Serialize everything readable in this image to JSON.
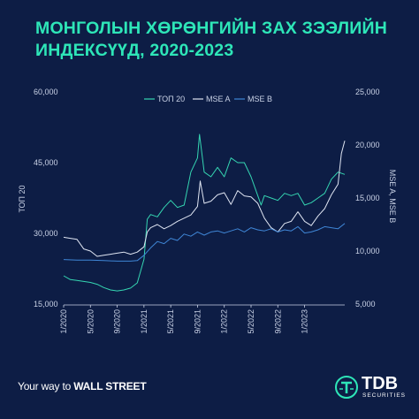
{
  "title": {
    "line1": "МОНГОЛЫН ХӨРӨНГИЙН ЗАХ ЗЭЭЛИЙН",
    "line2": "ИНДЕКСҮҮД, 2020-2023"
  },
  "footer": {
    "tagline_prefix": "Your way to ",
    "tagline_bold": "WALL STREET",
    "brand": "TDB",
    "brand_sub": "SECURITIES"
  },
  "colors": {
    "background": "#0d1d45",
    "accent": "#2ee6b8",
    "top20": "#35d6b2",
    "mse_a": "#dfe5f2",
    "mse_b": "#3f86d6"
  },
  "chart_data": {
    "type": "line",
    "title": "",
    "legend_position": "top",
    "y_left": {
      "label": "ТОП 20",
      "ticks": [
        "15,000",
        "30,000",
        "45,000",
        "60,000"
      ],
      "range": [
        15000,
        60000
      ]
    },
    "y_right": {
      "label": "MSE A, MSE B",
      "ticks": [
        "5,000",
        "10,000",
        "15,000",
        "20,000",
        "25,000"
      ],
      "range": [
        5000,
        25000
      ]
    },
    "x_ticks": [
      "1/2020",
      "5/2020",
      "9/2020",
      "1/2021",
      "5/2021",
      "9/2021",
      "1/2022",
      "5/2022",
      "9/2022",
      "1/2023"
    ],
    "series": [
      {
        "name": "ТОП 20",
        "axis": "left",
        "color": "#35d6b2",
        "x": [
          0,
          1,
          2,
          3,
          4,
          5,
          6,
          7,
          8,
          9,
          10,
          11,
          12,
          12.5,
          13,
          14,
          15,
          16,
          17,
          18,
          19,
          20,
          20.3,
          21,
          22,
          23,
          24,
          25,
          26,
          27,
          28,
          29,
          29.5,
          30,
          31,
          32,
          33,
          34,
          35,
          36,
          37,
          38,
          39,
          40,
          41,
          42
        ],
        "values": [
          21000,
          20200,
          20000,
          19800,
          19600,
          19200,
          18500,
          18000,
          17800,
          18000,
          18400,
          19500,
          24500,
          33000,
          34000,
          33500,
          35500,
          37000,
          35500,
          36000,
          43000,
          46000,
          51000,
          43000,
          42000,
          44000,
          42000,
          46000,
          45000,
          45000,
          42000,
          38000,
          36000,
          38000,
          37500,
          37000,
          38500,
          38000,
          38500,
          36000,
          36500,
          37500,
          38500,
          41500,
          43000,
          42500
        ]
      },
      {
        "name": "MSE A",
        "axis": "right",
        "color": "#dfe5f2",
        "x": [
          0,
          1,
          2,
          3,
          4,
          5,
          6,
          7,
          8,
          9,
          10,
          11,
          12,
          12.5,
          13,
          14,
          15,
          16,
          17,
          18,
          19,
          20,
          20.4,
          21,
          22,
          23,
          24,
          25,
          26,
          27,
          28,
          29,
          30,
          31,
          32,
          33,
          34,
          35,
          36,
          37,
          38,
          39,
          40,
          41,
          41.5,
          42
        ],
        "values": [
          11300,
          11200,
          11100,
          10200,
          10000,
          9500,
          9600,
          9700,
          9800,
          9900,
          9700,
          9900,
          10400,
          11800,
          12200,
          12500,
          12100,
          12400,
          12800,
          13100,
          13400,
          14200,
          16600,
          14500,
          14700,
          15300,
          15500,
          14400,
          15700,
          15200,
          15100,
          14500,
          13100,
          12200,
          11800,
          12600,
          12800,
          13700,
          12800,
          12400,
          13300,
          14000,
          15300,
          16300,
          19200,
          20400
        ]
      },
      {
        "name": "MSE B",
        "axis": "right",
        "color": "#3f86d6",
        "x": [
          0,
          2,
          4,
          6,
          8,
          10,
          11,
          12,
          13,
          14,
          15,
          16,
          17,
          18,
          19,
          20,
          21,
          22,
          23,
          24,
          25,
          26,
          27,
          28,
          29,
          30,
          31,
          32,
          33,
          34,
          35,
          36,
          37,
          38,
          39,
          40,
          41,
          42
        ],
        "values": [
          9200,
          9150,
          9150,
          9100,
          9050,
          9050,
          9100,
          9600,
          10300,
          10900,
          10700,
          11200,
          11000,
          11600,
          11400,
          11800,
          11500,
          11800,
          11900,
          11700,
          11900,
          12100,
          11800,
          12200,
          12000,
          11900,
          12100,
          11800,
          12000,
          11900,
          12300,
          11700,
          11800,
          12000,
          12300,
          12200,
          12100,
          12600
        ]
      }
    ]
  }
}
